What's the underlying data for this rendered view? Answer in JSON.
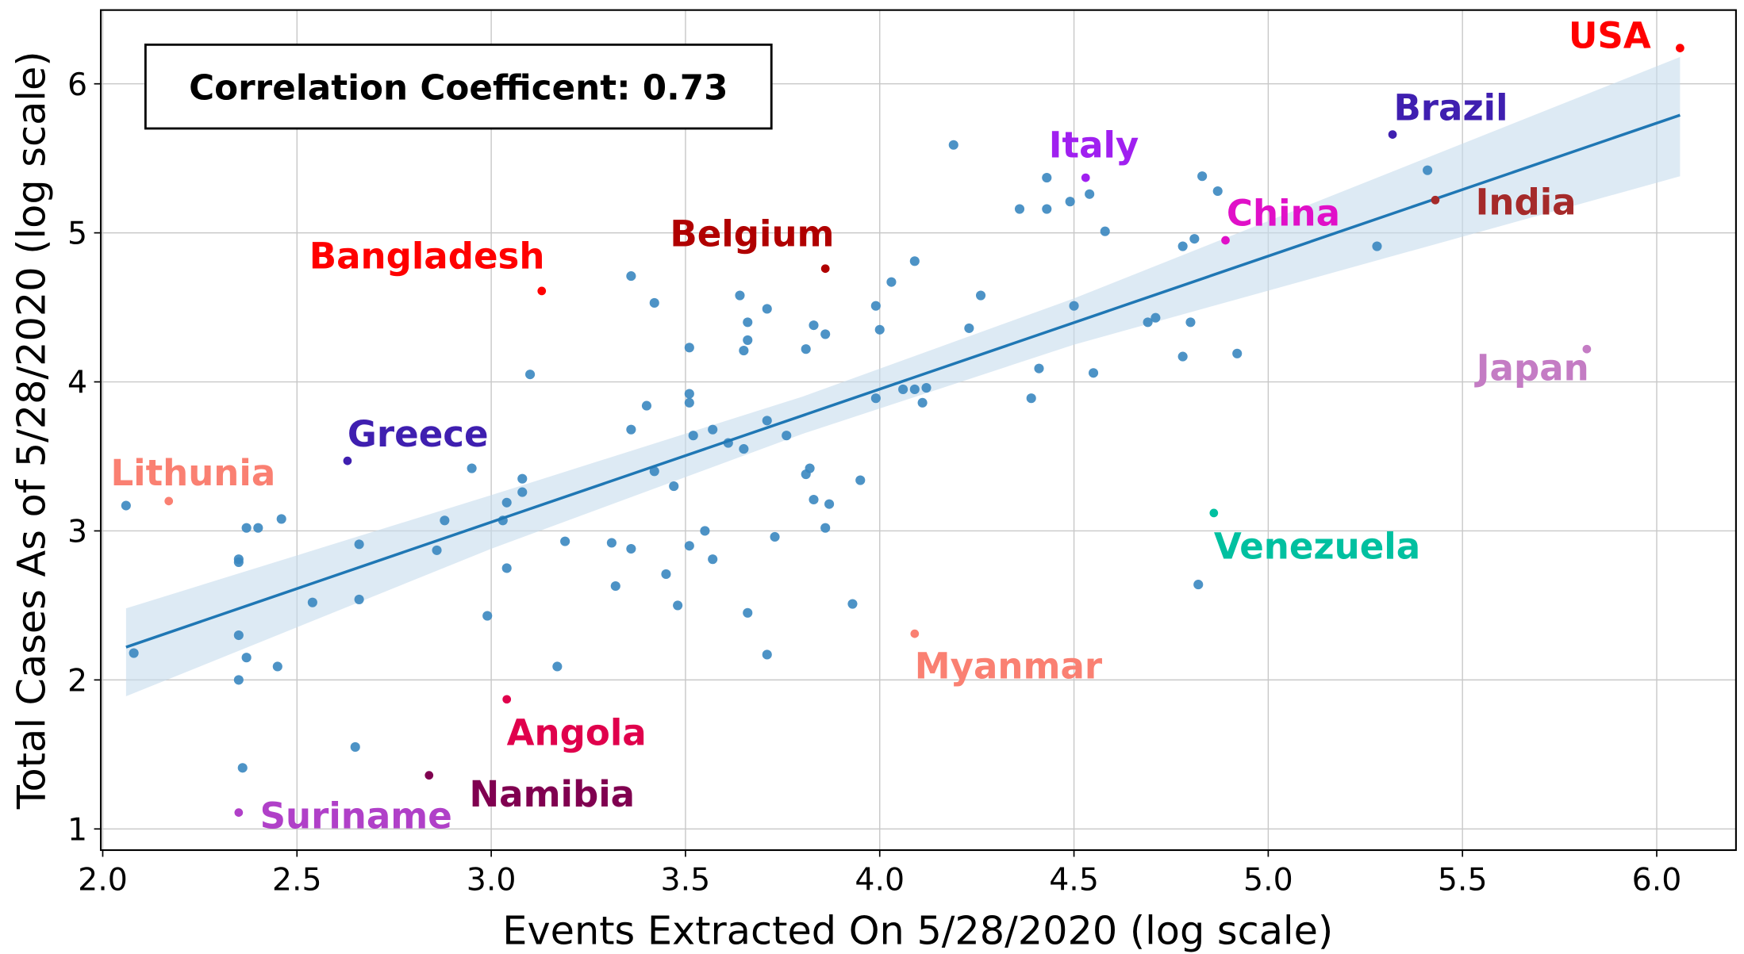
{
  "chart_data": {
    "type": "scatter",
    "title": "",
    "xlabel": "Events Extracted On 5/28/2020 (log scale)",
    "ylabel": "Total Cases As of 5/28/2020 (log scale)",
    "xlim": [
      1.995,
      6.204
    ],
    "ylim": [
      0.858,
      6.495
    ],
    "xticks": [
      "2.0",
      "2.5",
      "3.0",
      "3.5",
      "4.0",
      "4.5",
      "5.0",
      "5.5",
      "6.0"
    ],
    "yticks": [
      "1",
      "2",
      "3",
      "4",
      "5",
      "6"
    ],
    "grid": true,
    "annotation": "Correlation Coefficent: 0.73",
    "point_color": "#3a87c0",
    "regression": {
      "color": "#1f77b4",
      "band_color": "#c6dcec",
      "line": [
        [
          2.06,
          2.22
        ],
        [
          6.06,
          5.79
        ]
      ],
      "band": {
        "x": [
          2.06,
          3.0,
          3.8,
          4.5,
          6.06
        ],
        "lower": [
          1.89,
          2.88,
          3.65,
          4.25,
          5.38
        ],
        "upper": [
          2.48,
          3.24,
          3.9,
          4.56,
          6.18
        ]
      }
    },
    "points": [
      [
        2.06,
        3.17
      ],
      [
        2.08,
        2.18
      ],
      [
        2.35,
        2.81
      ],
      [
        2.35,
        2.79
      ],
      [
        2.37,
        3.02
      ],
      [
        2.4,
        3.02
      ],
      [
        2.46,
        3.08
      ],
      [
        2.35,
        2.3
      ],
      [
        2.37,
        2.15
      ],
      [
        2.35,
        2.0
      ],
      [
        2.45,
        2.09
      ],
      [
        2.36,
        1.41
      ],
      [
        2.54,
        2.52
      ],
      [
        2.66,
        2.91
      ],
      [
        2.66,
        2.54
      ],
      [
        2.65,
        1.55
      ],
      [
        2.86,
        2.87
      ],
      [
        2.88,
        3.07
      ],
      [
        2.95,
        3.42
      ],
      [
        2.99,
        2.43
      ],
      [
        3.03,
        3.07
      ],
      [
        3.04,
        3.19
      ],
      [
        3.04,
        2.75
      ],
      [
        3.08,
        3.35
      ],
      [
        3.08,
        3.26
      ],
      [
        3.1,
        4.05
      ],
      [
        3.19,
        2.93
      ],
      [
        3.17,
        2.09
      ],
      [
        3.31,
        2.92
      ],
      [
        3.32,
        2.63
      ],
      [
        3.36,
        4.71
      ],
      [
        3.36,
        3.68
      ],
      [
        3.36,
        2.88
      ],
      [
        3.4,
        3.84
      ],
      [
        3.42,
        4.53
      ],
      [
        3.42,
        3.4
      ],
      [
        3.45,
        2.71
      ],
      [
        3.47,
        3.3
      ],
      [
        3.48,
        2.5
      ],
      [
        3.51,
        4.23
      ],
      [
        3.51,
        3.92
      ],
      [
        3.51,
        3.86
      ],
      [
        3.52,
        3.64
      ],
      [
        3.51,
        2.9
      ],
      [
        3.55,
        3.0
      ],
      [
        3.57,
        3.68
      ],
      [
        3.57,
        2.81
      ],
      [
        3.61,
        3.59
      ],
      [
        3.64,
        4.58
      ],
      [
        3.66,
        4.4
      ],
      [
        3.66,
        4.28
      ],
      [
        3.65,
        4.21
      ],
      [
        3.65,
        3.55
      ],
      [
        3.66,
        2.45
      ],
      [
        3.71,
        4.49
      ],
      [
        3.71,
        3.74
      ],
      [
        3.73,
        2.96
      ],
      [
        3.71,
        2.17
      ],
      [
        3.76,
        3.64
      ],
      [
        3.83,
        4.38
      ],
      [
        3.81,
        4.22
      ],
      [
        3.86,
        4.32
      ],
      [
        3.82,
        3.42
      ],
      [
        3.81,
        3.38
      ],
      [
        3.83,
        3.21
      ],
      [
        3.87,
        3.18
      ],
      [
        3.86,
        3.02
      ],
      [
        3.95,
        3.34
      ],
      [
        3.93,
        2.51
      ],
      [
        3.99,
        4.51
      ],
      [
        4.0,
        4.35
      ],
      [
        3.99,
        3.89
      ],
      [
        4.03,
        4.67
      ],
      [
        4.09,
        4.81
      ],
      [
        4.06,
        3.95
      ],
      [
        4.09,
        3.95
      ],
      [
        4.12,
        3.96
      ],
      [
        4.11,
        3.86
      ],
      [
        4.19,
        5.59
      ],
      [
        4.23,
        4.36
      ],
      [
        4.26,
        4.58
      ],
      [
        4.36,
        5.16
      ],
      [
        4.43,
        5.37
      ],
      [
        4.43,
        5.16
      ],
      [
        4.49,
        5.21
      ],
      [
        4.54,
        5.26
      ],
      [
        4.58,
        5.01
      ],
      [
        4.5,
        4.51
      ],
      [
        4.41,
        4.09
      ],
      [
        4.39,
        3.89
      ],
      [
        4.55,
        4.06
      ],
      [
        4.69,
        4.4
      ],
      [
        4.71,
        4.43
      ],
      [
        4.78,
        4.91
      ],
      [
        4.81,
        4.96
      ],
      [
        4.78,
        4.17
      ],
      [
        4.8,
        4.4
      ],
      [
        4.83,
        5.38
      ],
      [
        4.87,
        5.28
      ],
      [
        4.92,
        4.19
      ],
      [
        4.82,
        2.64
      ],
      [
        5.28,
        4.91
      ],
      [
        5.41,
        5.42
      ]
    ],
    "labeled_points": [
      {
        "name": "USA",
        "x": 6.06,
        "y": 6.24,
        "color": "#ff0000"
      },
      {
        "name": "Brazil",
        "x": 5.32,
        "y": 5.66,
        "color": "#3f1fb0"
      },
      {
        "name": "Italy",
        "x": 4.53,
        "y": 5.37,
        "color": "#a020f0"
      },
      {
        "name": "China",
        "x": 4.89,
        "y": 4.95,
        "color": "#e010c8"
      },
      {
        "name": "India",
        "x": 5.43,
        "y": 5.22,
        "color": "#a52a2a"
      },
      {
        "name": "Japan",
        "x": 5.82,
        "y": 4.22,
        "color": "#c47cc4"
      },
      {
        "name": "Belgium",
        "x": 3.86,
        "y": 4.76,
        "color": "#b00000"
      },
      {
        "name": "Bangladesh",
        "x": 3.13,
        "y": 4.61,
        "color": "#ff0000"
      },
      {
        "name": "Greece",
        "x": 2.63,
        "y": 3.47,
        "color": "#3f1fb0"
      },
      {
        "name": "Lithunia",
        "x": 2.17,
        "y": 3.2,
        "color": "#fa8072"
      },
      {
        "name": "Venezuela",
        "x": 4.86,
        "y": 3.12,
        "color": "#00c0a0"
      },
      {
        "name": "Myanmar",
        "x": 4.09,
        "y": 2.31,
        "color": "#fa8072"
      },
      {
        "name": "Angola",
        "x": 3.04,
        "y": 1.87,
        "color": "#e0004c"
      },
      {
        "name": "Namibia",
        "x": 2.84,
        "y": 1.36,
        "color": "#800050"
      },
      {
        "name": "Suriname",
        "x": 2.35,
        "y": 1.11,
        "color": "#b040c8"
      }
    ]
  }
}
